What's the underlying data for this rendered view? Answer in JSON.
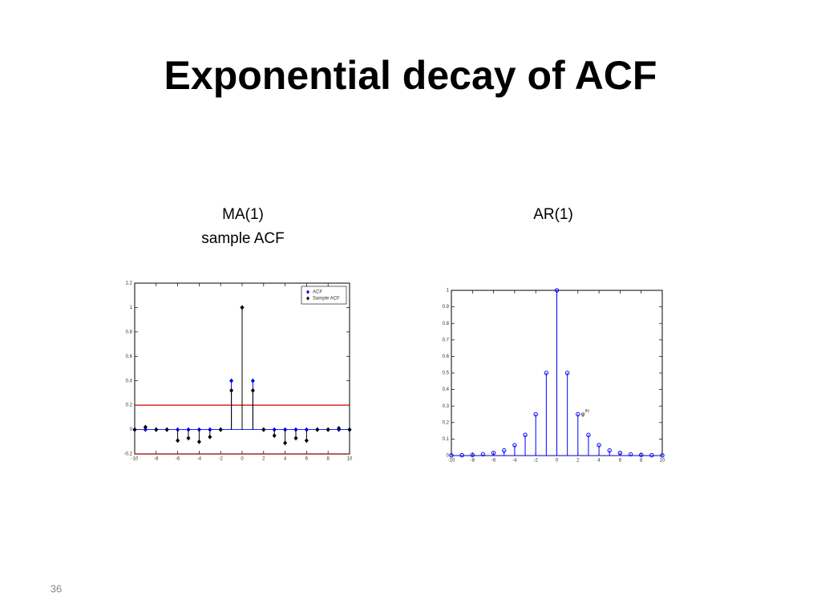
{
  "title": "Exponential decay of ACF",
  "page_number": "36",
  "chart_data": [
    {
      "type": "stem",
      "title": "MA(1)",
      "subtitle": "sample ACF",
      "x": [
        -10,
        -9,
        -8,
        -7,
        -6,
        -5,
        -4,
        -3,
        -2,
        -1,
        0,
        1,
        2,
        3,
        4,
        5,
        6,
        7,
        8,
        9,
        10
      ],
      "series": [
        {
          "name": "ACF",
          "color": "#0000ff",
          "marker": "diamond",
          "values": [
            0,
            0,
            0,
            0,
            0,
            0,
            0,
            0,
            0,
            0.4,
            1,
            0.4,
            0,
            0,
            0,
            0,
            0,
            0,
            0,
            0,
            0
          ]
        },
        {
          "name": "Sample ACF",
          "color": "#000000",
          "marker": "diamond",
          "values": [
            0,
            0.02,
            0,
            0,
            -0.09,
            -0.07,
            -0.1,
            -0.06,
            0,
            0.32,
            1,
            0.32,
            0,
            -0.05,
            -0.11,
            -0.07,
            -0.09,
            0,
            0,
            0.01,
            0
          ]
        }
      ],
      "reference_lines": [
        {
          "value": 0.2,
          "color": "#cc0000"
        },
        {
          "value": -0.2,
          "color": "#880000"
        }
      ],
      "xlim": [
        -10,
        10
      ],
      "xticks": [
        -10,
        -8,
        -6,
        -4,
        -2,
        0,
        2,
        4,
        6,
        8,
        10
      ],
      "ylim": [
        -0.2,
        1.2
      ],
      "yticks": [
        -0.2,
        0,
        0.2,
        0.4,
        0.6,
        0.8,
        1,
        1.2
      ],
      "grid": false,
      "legend": "upper right"
    },
    {
      "type": "stem",
      "title": "AR(1)",
      "x": [
        -10,
        -9,
        -8,
        -7,
        -6,
        -5,
        -4,
        -3,
        -2,
        -1,
        0,
        1,
        2,
        3,
        4,
        5,
        6,
        7,
        8,
        9,
        10
      ],
      "series": [
        {
          "color": "#0000ff",
          "marker": "circle",
          "values": [
            0.001,
            0.002,
            0.004,
            0.008,
            0.016,
            0.031,
            0.063,
            0.125,
            0.25,
            0.5,
            1,
            0.5,
            0.25,
            0.125,
            0.063,
            0.031,
            0.016,
            0.008,
            0.004,
            0.002,
            0.001
          ]
        }
      ],
      "annotation": {
        "text": "φ",
        "superscript": "|h|"
      },
      "xlim": [
        -10,
        10
      ],
      "xticks": [
        -10,
        -8,
        -6,
        -4,
        -2,
        0,
        2,
        4,
        6,
        8,
        10
      ],
      "ylim": [
        0,
        1
      ],
      "yticks": [
        0,
        0.1,
        0.2,
        0.3,
        0.4,
        0.5,
        0.6,
        0.7,
        0.8,
        0.9,
        1
      ],
      "grid": false
    }
  ]
}
